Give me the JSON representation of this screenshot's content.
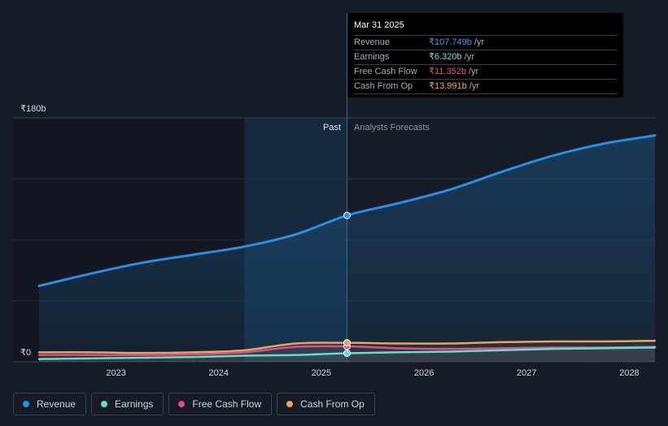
{
  "tooltip": {
    "date": "Mar 31 2025",
    "rows": [
      {
        "label": "Revenue",
        "value": "₹107.749b",
        "unit": "/yr",
        "color": "#3b9fe8"
      },
      {
        "label": "Earnings",
        "value": "₹6.320b",
        "unit": "/yr",
        "color": "#6fe3d0"
      },
      {
        "label": "Free Cash Flow",
        "value": "₹11.352b",
        "unit": "/yr",
        "color": "#e0528b"
      },
      {
        "label": "Cash From Op",
        "value": "₹13.991b",
        "unit": "/yr",
        "color": "#f0a95a"
      }
    ]
  },
  "legend": [
    {
      "label": "Revenue",
      "color": "#2c8ee0"
    },
    {
      "label": "Earnings",
      "color": "#5fe0cc"
    },
    {
      "label": "Free Cash Flow",
      "color": "#d9508a"
    },
    {
      "label": "Cash From Op",
      "color": "#eba35b"
    }
  ],
  "chart_data": {
    "type": "line",
    "y_top_label": "₹180b",
    "y_bottom_label": "₹0",
    "ylim": [
      0,
      180
    ],
    "xlim": [
      2022.25,
      2028.25
    ],
    "x_ticks": [
      2023,
      2024,
      2025,
      2026,
      2027,
      2028
    ],
    "x_tick_labels": [
      "2023",
      "2024",
      "2025",
      "2026",
      "2027",
      "2028"
    ],
    "past_label": "Past",
    "forecast_label": "Analysts Forecasts",
    "divider_x": 2025.25,
    "highlight_start_x": 2024.25,
    "series": [
      {
        "name": "Revenue",
        "color": "#2c8ee0",
        "points": [
          [
            2022.25,
            56
          ],
          [
            2022.75,
            65
          ],
          [
            2023.25,
            73
          ],
          [
            2023.75,
            79
          ],
          [
            2024.25,
            85
          ],
          [
            2024.75,
            94
          ],
          [
            2025.25,
            108
          ],
          [
            2025.75,
            117
          ],
          [
            2026.25,
            127
          ],
          [
            2026.75,
            140
          ],
          [
            2027.25,
            152
          ],
          [
            2027.75,
            161
          ],
          [
            2028.25,
            167
          ]
        ]
      },
      {
        "name": "Earnings",
        "color": "#5fe0cc",
        "points": [
          [
            2022.25,
            2
          ],
          [
            2022.75,
            2.5
          ],
          [
            2023.25,
            3
          ],
          [
            2023.75,
            3.5
          ],
          [
            2024.25,
            4.5
          ],
          [
            2024.75,
            5
          ],
          [
            2025.25,
            6.3
          ],
          [
            2025.75,
            7
          ],
          [
            2026.25,
            7.5
          ],
          [
            2026.75,
            8.5
          ],
          [
            2027.25,
            9.5
          ],
          [
            2027.75,
            10
          ],
          [
            2028.25,
            10.5
          ]
        ]
      },
      {
        "name": "Free Cash Flow",
        "color": "#d9508a",
        "points": [
          [
            2022.25,
            5
          ],
          [
            2022.75,
            5
          ],
          [
            2023.25,
            5
          ],
          [
            2023.75,
            5.5
          ],
          [
            2024.25,
            7
          ],
          [
            2024.75,
            11
          ],
          [
            2025.25,
            11.4
          ],
          [
            2025.75,
            10
          ],
          [
            2026.25,
            9.5
          ],
          [
            2026.75,
            10
          ],
          [
            2027.25,
            10.5
          ],
          [
            2027.75,
            10.5
          ],
          [
            2028.25,
            11
          ]
        ]
      },
      {
        "name": "Cash From Op",
        "color": "#eba35b",
        "points": [
          [
            2022.25,
            7
          ],
          [
            2022.75,
            7
          ],
          [
            2023.25,
            6.5
          ],
          [
            2023.75,
            7
          ],
          [
            2024.25,
            8.5
          ],
          [
            2024.75,
            13.5
          ],
          [
            2025.25,
            14
          ],
          [
            2025.75,
            13.5
          ],
          [
            2026.25,
            13.5
          ],
          [
            2026.75,
            14.5
          ],
          [
            2027.25,
            15
          ],
          [
            2027.75,
            15
          ],
          [
            2028.25,
            15.5
          ]
        ]
      }
    ],
    "highlight_x": 2025.25,
    "grid": true,
    "legend_position": "bottom-left"
  }
}
